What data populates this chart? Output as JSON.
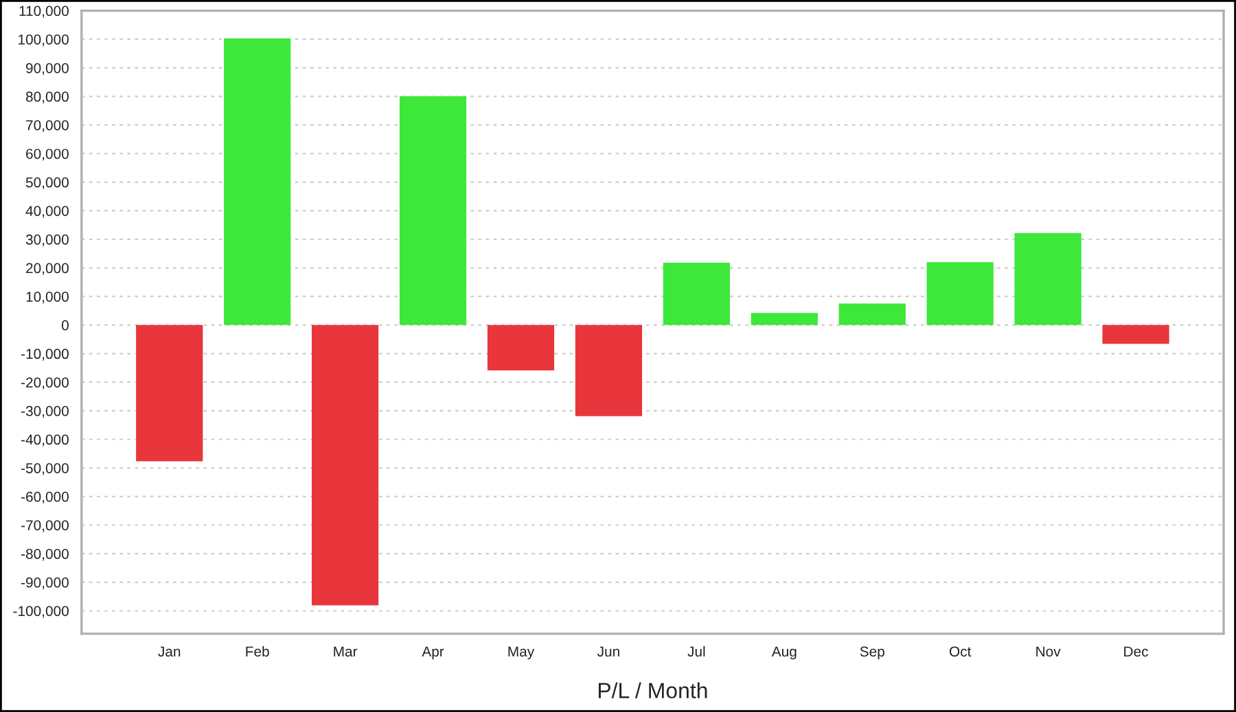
{
  "chart_data": {
    "type": "bar",
    "xlabel": "P/L / Month",
    "categories": [
      "Jan",
      "Feb",
      "Mar",
      "Apr",
      "May",
      "Jun",
      "Jul",
      "Aug",
      "Sep",
      "Oct",
      "Nov",
      "Dec"
    ],
    "values": [
      -47700,
      100300,
      -98100,
      80100,
      -15900,
      -31900,
      21800,
      4200,
      7500,
      22000,
      32200,
      -6600
    ],
    "colors": [
      "#e8363c",
      "#3de83a",
      "#e8363c",
      "#3de83a",
      "#e8363c",
      "#e8363c",
      "#3de83a",
      "#3de83a",
      "#3de83a",
      "#3de83a",
      "#3de83a",
      "#e8363c"
    ],
    "ylim": [
      -108000,
      110000
    ],
    "yticks": [
      {
        "value": -100000,
        "label": "-100,000"
      },
      {
        "value": -90000,
        "label": "-90,000"
      },
      {
        "value": -80000,
        "label": "-80,000"
      },
      {
        "value": -70000,
        "label": "-70,000"
      },
      {
        "value": -60000,
        "label": "-60,000"
      },
      {
        "value": -50000,
        "label": "-50,000"
      },
      {
        "value": -40000,
        "label": "-40,000"
      },
      {
        "value": -30000,
        "label": "-30,000"
      },
      {
        "value": -20000,
        "label": "-20,000"
      },
      {
        "value": -10000,
        "label": "-10,000"
      },
      0,
      {
        "value": 10000,
        "label": "10,000"
      },
      {
        "value": 20000,
        "label": "20,000"
      },
      {
        "value": 30000,
        "label": "30,000"
      },
      {
        "value": 40000,
        "label": "40,000"
      },
      {
        "value": 50000,
        "label": "50,000"
      },
      {
        "value": 60000,
        "label": "60,000"
      },
      {
        "value": 70000,
        "label": "70,000"
      },
      {
        "value": 80000,
        "label": "80,000"
      },
      {
        "value": 90000,
        "label": "90,000"
      },
      {
        "value": 100000,
        "label": "100,000"
      },
      {
        "value": 110000,
        "label": "110,000"
      }
    ],
    "grid": "y",
    "legend": false
  }
}
